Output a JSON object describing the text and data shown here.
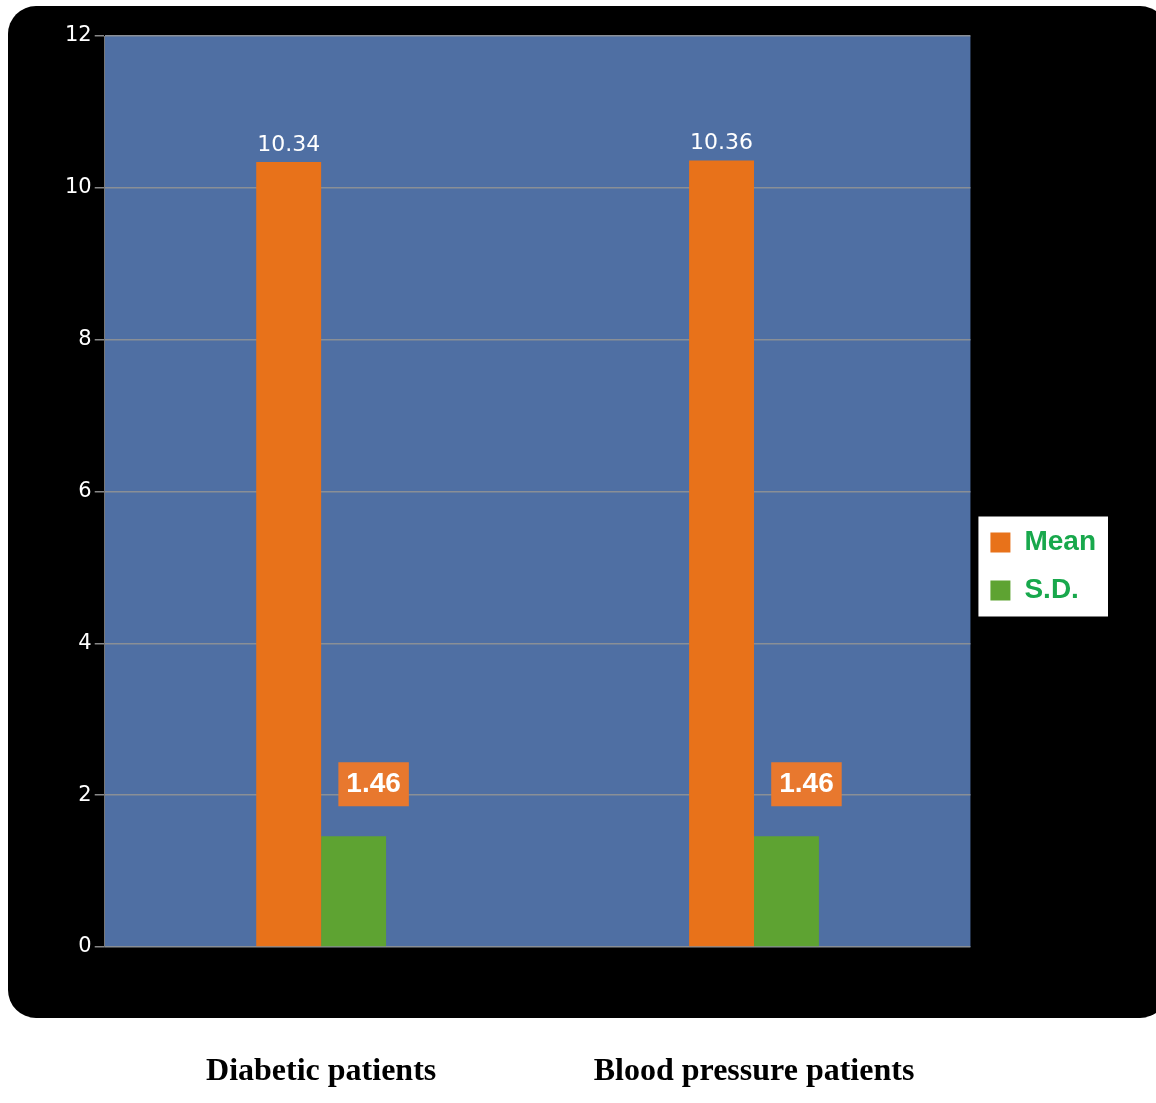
{
  "chart_data": {
    "type": "bar",
    "categories": [
      "Diabetic patients",
      "Blood pressure patients"
    ],
    "series": [
      {
        "name": "Mean",
        "color": "#e8721a",
        "values": [
          10.34,
          10.36
        ]
      },
      {
        "name": "S.D.",
        "color": "#5ea332",
        "values": [
          1.46,
          1.46
        ]
      }
    ],
    "ylim": [
      0,
      12
    ],
    "yticks": [
      0,
      2,
      4,
      6,
      8,
      10,
      12
    ],
    "grid": "y",
    "legend": "right",
    "data_labels": true
  }
}
